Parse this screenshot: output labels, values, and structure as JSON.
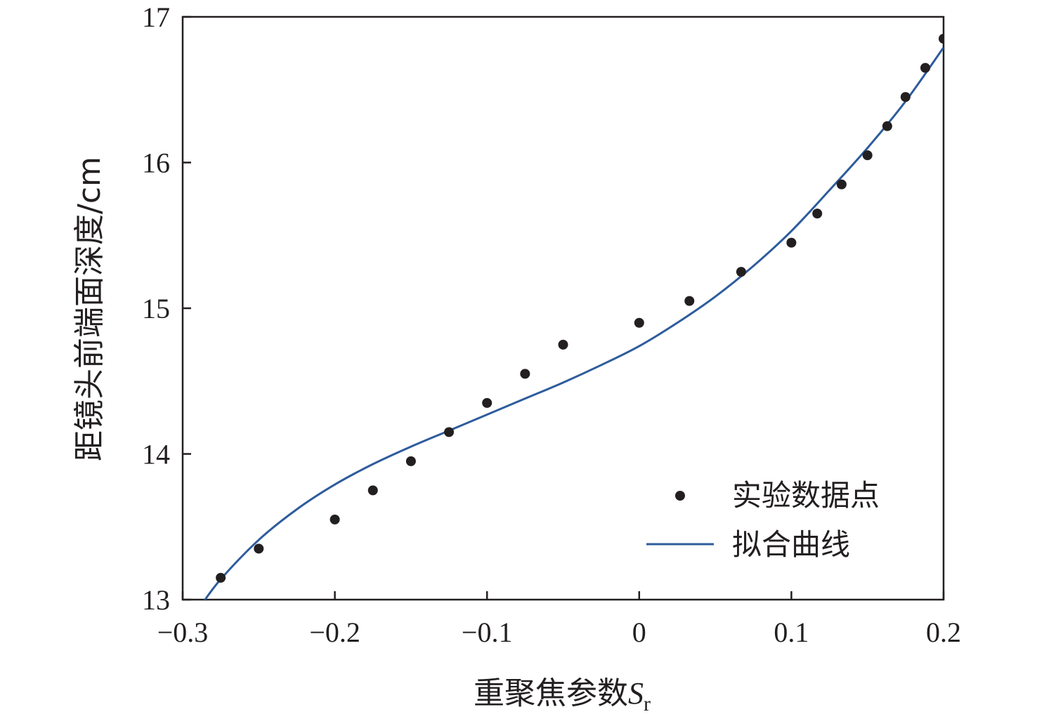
{
  "chart_data": {
    "type": "scatter",
    "xlabel": "重聚焦参数",
    "xlabel_symbol": "S",
    "xlabel_subscript": "r",
    "ylabel": "距镜头前端面深度/cm",
    "xlim": [
      -0.3,
      0.2
    ],
    "ylim": [
      13,
      17
    ],
    "xticks": [
      "−0.3",
      "−0.2",
      "−0.1",
      "0",
      "0.1",
      "0.2"
    ],
    "xtick_values": [
      -0.3,
      -0.2,
      -0.1,
      0,
      0.1,
      0.2
    ],
    "yticks": [
      "13",
      "14",
      "15",
      "16",
      "17"
    ],
    "ytick_values": [
      13,
      14,
      15,
      16,
      17
    ],
    "legend_position": "bottom-right",
    "series": [
      {
        "name": "实验数据点",
        "kind": "scatter",
        "color": "#231f20",
        "points": [
          {
            "x": -0.275,
            "y": 13.15
          },
          {
            "x": -0.25,
            "y": 13.35
          },
          {
            "x": -0.2,
            "y": 13.55
          },
          {
            "x": -0.175,
            "y": 13.75
          },
          {
            "x": -0.15,
            "y": 13.95
          },
          {
            "x": -0.125,
            "y": 14.15
          },
          {
            "x": -0.1,
            "y": 14.35
          },
          {
            "x": -0.075,
            "y": 14.55
          },
          {
            "x": -0.05,
            "y": 14.75
          },
          {
            "x": 0.0,
            "y": 14.9
          },
          {
            "x": 0.033,
            "y": 15.05
          },
          {
            "x": 0.067,
            "y": 15.25
          },
          {
            "x": 0.1,
            "y": 15.45
          },
          {
            "x": 0.117,
            "y": 15.65
          },
          {
            "x": 0.133,
            "y": 15.85
          },
          {
            "x": 0.15,
            "y": 16.05
          },
          {
            "x": 0.163,
            "y": 16.25
          },
          {
            "x": 0.175,
            "y": 16.45
          },
          {
            "x": 0.188,
            "y": 16.65
          },
          {
            "x": 0.2,
            "y": 16.85
          }
        ]
      },
      {
        "name": "拟合曲线",
        "kind": "line",
        "color": "#2e5c9c",
        "points": [
          {
            "x": -0.288,
            "y": 12.96
          },
          {
            "x": -0.275,
            "y": 13.14
          },
          {
            "x": -0.25,
            "y": 13.41
          },
          {
            "x": -0.225,
            "y": 13.62
          },
          {
            "x": -0.2,
            "y": 13.79
          },
          {
            "x": -0.175,
            "y": 13.93
          },
          {
            "x": -0.15,
            "y": 14.05
          },
          {
            "x": -0.125,
            "y": 14.16
          },
          {
            "x": -0.1,
            "y": 14.27
          },
          {
            "x": -0.075,
            "y": 14.38
          },
          {
            "x": -0.05,
            "y": 14.49
          },
          {
            "x": -0.025,
            "y": 14.61
          },
          {
            "x": 0.0,
            "y": 14.74
          },
          {
            "x": 0.025,
            "y": 14.9
          },
          {
            "x": 0.05,
            "y": 15.08
          },
          {
            "x": 0.075,
            "y": 15.29
          },
          {
            "x": 0.1,
            "y": 15.53
          },
          {
            "x": 0.125,
            "y": 15.81
          },
          {
            "x": 0.15,
            "y": 16.1
          },
          {
            "x": 0.175,
            "y": 16.42
          },
          {
            "x": 0.2,
            "y": 16.79
          }
        ]
      }
    ]
  }
}
